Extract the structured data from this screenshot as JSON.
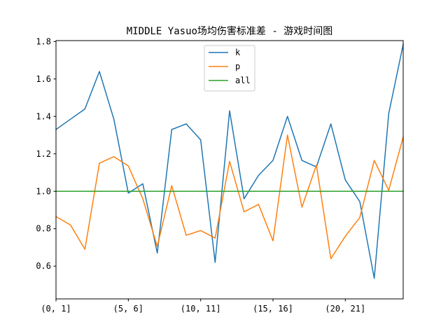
{
  "chart_data": {
    "type": "line",
    "title": "MIDDLE Yasuo场均伤害标准差 - 游戏时间图",
    "xlabel": "",
    "ylabel": "",
    "x": [
      0,
      1,
      2,
      3,
      4,
      5,
      6,
      7,
      8,
      9,
      10,
      11,
      12,
      13,
      14,
      15,
      16,
      17,
      18,
      19,
      20,
      21,
      22,
      23,
      24
    ],
    "x_tick_positions": [
      0,
      5,
      10,
      15,
      20
    ],
    "x_tick_labels": [
      "(0, 1]",
      "(5, 6]",
      "(10, 11]",
      "(15, 16]",
      "(20, 21]"
    ],
    "xlim": [
      0,
      24
    ],
    "ylim": [
      0.425,
      1.805
    ],
    "y_ticks": [
      0.6,
      0.8,
      1.0,
      1.2,
      1.4,
      1.6,
      1.8
    ],
    "y_tick_labels": [
      "0.6",
      "0.8",
      "1.0",
      "1.2",
      "1.4",
      "1.6",
      "1.8"
    ],
    "grid": false,
    "legend_position": "top-center",
    "series": [
      {
        "name": "k",
        "color": "#1f77b4",
        "values": [
          1.33,
          1.385,
          1.44,
          1.64,
          1.385,
          0.99,
          1.04,
          0.67,
          1.33,
          1.36,
          1.275,
          0.62,
          1.43,
          0.96,
          1.085,
          1.165,
          1.4,
          1.165,
          1.13,
          1.36,
          1.06,
          0.945,
          0.535,
          1.415,
          1.785
        ]
      },
      {
        "name": "p",
        "color": "#ff7f0e",
        "values": [
          0.865,
          0.82,
          0.69,
          1.15,
          1.185,
          1.135,
          0.96,
          0.705,
          1.03,
          0.765,
          0.79,
          0.75,
          1.16,
          0.89,
          0.93,
          0.735,
          1.3,
          0.915,
          1.14,
          0.64,
          0.76,
          0.86,
          1.165,
          1.005,
          1.29
        ]
      },
      {
        "name": "all",
        "color": "#2ca02c",
        "values": [
          1.0,
          1.0,
          1.0,
          1.0,
          1.0,
          1.0,
          1.0,
          1.0,
          1.0,
          1.0,
          1.0,
          1.0,
          1.0,
          1.0,
          1.0,
          1.0,
          1.0,
          1.0,
          1.0,
          1.0,
          1.0,
          1.0,
          1.0,
          1.0,
          1.0
        ]
      }
    ]
  }
}
